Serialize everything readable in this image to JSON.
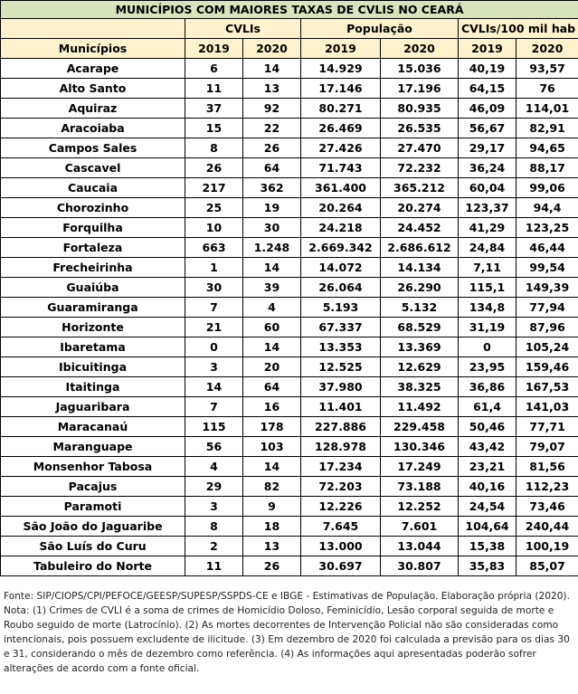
{
  "table": {
    "title": "MUNICÍPIOS COM MAIORES TAXAS DE CVLIS NO CEARÁ",
    "first_column": "Municípios",
    "groups": [
      {
        "label": "CVLIs",
        "years": [
          "2019",
          "2020"
        ]
      },
      {
        "label": "População",
        "years": [
          "2019",
          "2020"
        ]
      },
      {
        "label": "CVLIs/100 mil hab",
        "years": [
          "2019",
          "2020"
        ]
      }
    ],
    "rows": [
      [
        "Acarape",
        "6",
        "14",
        "14.929",
        "15.036",
        "40,19",
        "93,57"
      ],
      [
        "Alto Santo",
        "11",
        "13",
        "17.146",
        "17.196",
        "64,15",
        "76"
      ],
      [
        "Aquiraz",
        "37",
        "92",
        "80.271",
        "80.935",
        "46,09",
        "114,01"
      ],
      [
        "Aracoiaba",
        "15",
        "22",
        "26.469",
        "26.535",
        "56,67",
        "82,91"
      ],
      [
        "Campos Sales",
        "8",
        "26",
        "27.426",
        "27.470",
        "29,17",
        "94,65"
      ],
      [
        "Cascavel",
        "26",
        "64",
        "71.743",
        "72.232",
        "36,24",
        "88,17"
      ],
      [
        "Caucaia",
        "217",
        "362",
        "361.400",
        "365.212",
        "60,04",
        "99,06"
      ],
      [
        "Chorozinho",
        "25",
        "19",
        "20.264",
        "20.274",
        "123,37",
        "94,4"
      ],
      [
        "Forquilha",
        "10",
        "30",
        "24.218",
        "24.452",
        "41,29",
        "123,25"
      ],
      [
        "Fortaleza",
        "663",
        "1.248",
        "2.669.342",
        "2.686.612",
        "24,84",
        "46,44"
      ],
      [
        "Frecheirinha",
        "1",
        "14",
        "14.072",
        "14.134",
        "7,11",
        "99,54"
      ],
      [
        "Guaiúba",
        "30",
        "39",
        "26.064",
        "26.290",
        "115,1",
        "149,39"
      ],
      [
        "Guaramiranga",
        "7",
        "4",
        "5.193",
        "5.132",
        "134,8",
        "77,94"
      ],
      [
        "Horizonte",
        "21",
        "60",
        "67.337",
        "68.529",
        "31,19",
        "87,96"
      ],
      [
        "Ibaretama",
        "0",
        "14",
        "13.353",
        "13.369",
        "0",
        "105,24"
      ],
      [
        "Ibicuitinga",
        "3",
        "20",
        "12.525",
        "12.629",
        "23,95",
        "159,46"
      ],
      [
        "Itaitinga",
        "14",
        "64",
        "37.980",
        "38.325",
        "36,86",
        "167,53"
      ],
      [
        "Jaguaribara",
        "7",
        "16",
        "11.401",
        "11.492",
        "61,4",
        "141,03"
      ],
      [
        "Maracanaú",
        "115",
        "178",
        "227.886",
        "229.458",
        "50,46",
        "77,71"
      ],
      [
        "Maranguape",
        "56",
        "103",
        "128.978",
        "130.346",
        "43,42",
        "79,07"
      ],
      [
        "Monsenhor Tabosa",
        "4",
        "14",
        "17.234",
        "17.249",
        "23,21",
        "81,56"
      ],
      [
        "Pacajus",
        "29",
        "82",
        "72.203",
        "73.188",
        "40,16",
        "112,23"
      ],
      [
        "Paramoti",
        "3",
        "9",
        "12.226",
        "12.252",
        "24,54",
        "73,46"
      ],
      [
        "São João do Jaguaribe",
        "8",
        "18",
        "7.645",
        "7.601",
        "104,64",
        "240,44"
      ],
      [
        "São Luís do Curu",
        "2",
        "13",
        "13.000",
        "13.044",
        "15,38",
        "100,19"
      ],
      [
        "Tabuleiro do Norte",
        "11",
        "26",
        "30.697",
        "30.807",
        "35,83",
        "85,07"
      ]
    ]
  },
  "footnote": {
    "source": "Fonte: SIP/CIOPS/CPI/PEFOCE/GEESP/SUPESP/SSPDS-CE e IBGE - Estimativas de População. Elaboração própria (2020).",
    "note": "Nota: (1) Crimes de CVLI é a soma de crimes de Homicídio Doloso, Feminicídio, Lesão corporal seguida de morte e Roubo seguido de morte (Latrocínio). (2) As mortes decorrentes de Intervenção Policial não são consideradas como intencionais, pois possuem excludente de ilicitude. (3) Em dezembro de 2020 foi calculada a previsão para os dias 30 e 31, considerando o mês de dezembro como referência. (4) As informações aqui apresentadas poderão sofrer alterações de acordo com a fonte oficial."
  }
}
